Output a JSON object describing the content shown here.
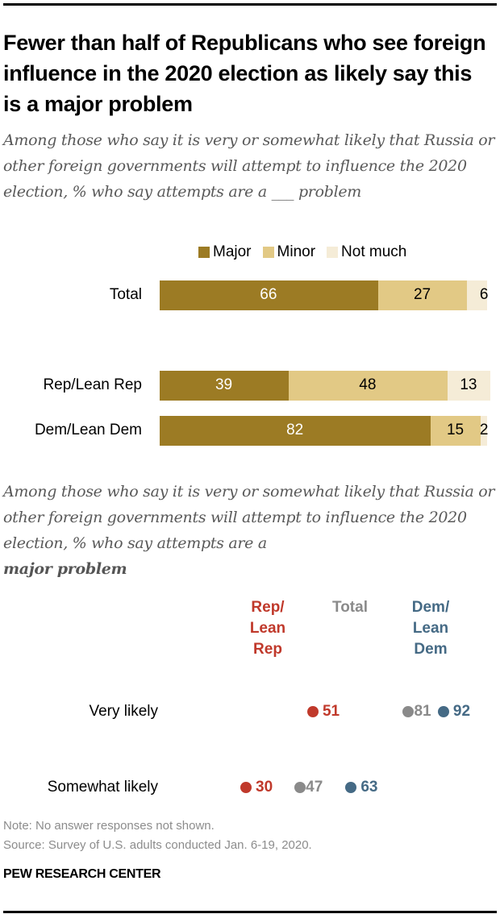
{
  "title": "Fewer than half of Republicans who see foreign influence in the 2020 election as likely say this is a major problem",
  "subtitle_top": "Among those who say it is very or somewhat likely that Russia or other foreign governments will attempt to influence the 2020 election, % who say attempts are a ___ problem",
  "subtitle_bottom_prefix": "Among those who say it is very or somewhat likely that Russia or other foreign governments will attempt to influence the 2020 election, % who say attempts are a",
  "subtitle_bottom_emphasis": "major problem",
  "note": "Note: No answer responses not shown.",
  "source": "Source: Survey of U.S. adults conducted Jan. 6-19, 2020.",
  "org": "PEW RESEARCH CENTER",
  "colors": {
    "major": "#9c7b24",
    "minor": "#e2c985",
    "not_much": "#f5ecd7",
    "rep": "#c0392b",
    "total": "#8a8a8a",
    "dem": "#456a85"
  },
  "chart_data": [
    {
      "type": "bar",
      "orientation": "horizontal-stacked",
      "title": "",
      "categories": [
        "Total",
        "Rep/Lean Rep",
        "Dem/Lean Dem"
      ],
      "series": [
        {
          "name": "Major",
          "values": [
            66,
            39,
            82
          ]
        },
        {
          "name": "Minor",
          "values": [
            27,
            48,
            15
          ]
        },
        {
          "name": "Not much",
          "values": [
            6,
            13,
            2
          ]
        }
      ],
      "legend": [
        "Major",
        "Minor",
        "Not much"
      ],
      "legend_position": "top",
      "xlim": [
        0,
        100
      ],
      "xlabel": "",
      "ylabel": "",
      "grid": false
    },
    {
      "type": "scatter",
      "subtype": "dot-plot",
      "title": "",
      "categories": [
        "Very likely",
        "Somewhat likely"
      ],
      "series": [
        {
          "name": "Rep/ Lean Rep",
          "header_lines": [
            "Rep/",
            "Lean",
            "Rep"
          ],
          "values": [
            51,
            30
          ]
        },
        {
          "name": "Total",
          "header_lines": [
            "Total"
          ],
          "values": [
            81,
            47
          ]
        },
        {
          "name": "Dem/ Lean Dem",
          "header_lines": [
            "Dem/",
            "Lean",
            "Dem"
          ],
          "values": [
            92,
            63
          ]
        }
      ],
      "xlim": [
        0,
        100
      ],
      "xlabel": "",
      "ylabel": "",
      "grid": false
    }
  ]
}
